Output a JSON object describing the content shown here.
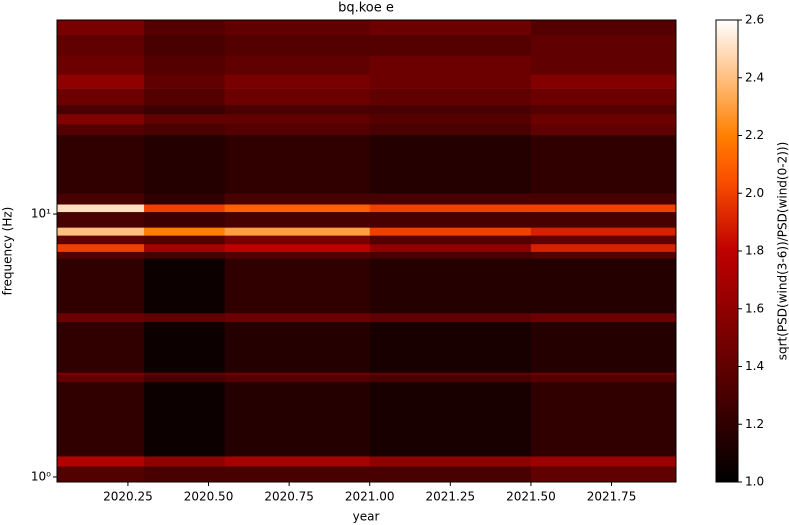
{
  "chart_data": {
    "type": "heatmap",
    "title": "bq.koe e",
    "xlabel": "year",
    "ylabel": "frequency (Hz)",
    "colorbar_label": "sqrt(PSD(wind(3-6))/PSD(wind(0-2)))",
    "colormap": "gist_heat",
    "y_log": true,
    "xlim": [
      2020.03,
      2021.95
    ],
    "ylim": [
      0.957,
      54.7
    ],
    "xticks": [
      2020.25,
      {
        "value": 2020.5,
        "label": "2020.50"
      },
      2020.75,
      {
        "value": 2021,
        "label": "2021.00"
      },
      2021.25,
      {
        "value": 2021.5,
        "label": "2021.50"
      },
      2021.75
    ],
    "yticks": [
      {
        "value": 1,
        "label": "10⁰"
      },
      {
        "value": 10,
        "label": "10¹"
      }
    ],
    "clim": [
      1.0,
      2.6
    ],
    "cticks": [
      {
        "value": 1,
        "label": "1.0"
      },
      1.2,
      1.4,
      1.6,
      1.8,
      {
        "value": 2,
        "label": "2.0"
      },
      2.2,
      2.4,
      2.6
    ],
    "x_edges": [
      2020.03,
      2020.3,
      2020.55,
      2021.0,
      2021.5,
      2021.95
    ],
    "y_edges": [
      0.957,
      1.1,
      1.2,
      2.3,
      2.45,
      2.5,
      3.9,
      4.2,
      6.8,
      7.2,
      7.7,
      8.3,
      8.9,
      10.2,
      10.9,
      12,
      20,
      22,
      24,
      26,
      30,
      34,
      40,
      48,
      54.7
    ],
    "values": [
      [
        1.35,
        1.3,
        1.3,
        1.3,
        1.4
      ],
      [
        1.75,
        1.6,
        1.7,
        1.6,
        1.65
      ],
      [
        1.2,
        1.05,
        1.15,
        1.1,
        1.2
      ],
      [
        1.4,
        1.3,
        1.35,
        1.3,
        1.35
      ],
      [
        1.5,
        1.4,
        1.45,
        1.4,
        1.45
      ],
      [
        1.2,
        1.05,
        1.15,
        1.1,
        1.15
      ],
      [
        1.45,
        1.4,
        1.45,
        1.4,
        1.45
      ],
      [
        1.2,
        1.05,
        1.2,
        1.15,
        1.15
      ],
      [
        1.35,
        1.3,
        1.35,
        1.3,
        1.35
      ],
      [
        2.0,
        1.7,
        1.8,
        1.6,
        1.9
      ],
      [
        1.4,
        1.35,
        1.5,
        1.35,
        1.4
      ],
      [
        2.4,
        2.2,
        2.3,
        2.0,
        1.9
      ],
      [
        1.3,
        1.25,
        1.3,
        1.3,
        1.3
      ],
      [
        2.5,
        2.0,
        2.1,
        2.0,
        2.0
      ],
      [
        1.3,
        1.2,
        1.3,
        1.3,
        1.3
      ],
      [
        1.2,
        1.15,
        1.2,
        1.15,
        1.2
      ],
      [
        1.35,
        1.3,
        1.35,
        1.3,
        1.4
      ],
      [
        1.55,
        1.4,
        1.4,
        1.35,
        1.45
      ],
      [
        1.3,
        1.25,
        1.3,
        1.3,
        1.35
      ],
      [
        1.45,
        1.35,
        1.45,
        1.4,
        1.45
      ],
      [
        1.6,
        1.4,
        1.5,
        1.45,
        1.55
      ],
      [
        1.45,
        1.35,
        1.4,
        1.45,
        1.4
      ],
      [
        1.4,
        1.3,
        1.35,
        1.35,
        1.4
      ],
      [
        1.5,
        1.35,
        1.4,
        1.45,
        1.35
      ]
    ]
  }
}
